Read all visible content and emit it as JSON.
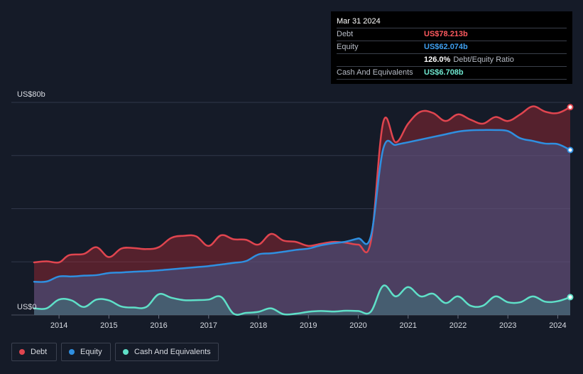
{
  "tooltip": {
    "date": "Mar 31 2024",
    "debt_label": "Debt",
    "debt_value": "US$78.213b",
    "equity_label": "Equity",
    "equity_value": "US$62.074b",
    "ratio_value": "126.0%",
    "ratio_label": "Debt/Equity Ratio",
    "cash_label": "Cash And Equivalents",
    "cash_value": "US$6.708b"
  },
  "colors": {
    "debt": "#e0454f",
    "equity": "#2f8fe0",
    "cash": "#5fe0c8",
    "debt_text": "#ff5a5f",
    "equity_text": "#3fa0f0",
    "cash_text": "#6fe8d0"
  },
  "legend": [
    {
      "name": "Debt",
      "color": "#e0454f"
    },
    {
      "name": "Equity",
      "color": "#2f8fe0"
    },
    {
      "name": "Cash And Equivalents",
      "color": "#5fe0c8"
    }
  ],
  "chart_data": {
    "type": "area",
    "title": "",
    "xlabel": "",
    "ylabel": "",
    "y_unit_labels": {
      "top": "US$80b",
      "bottom": "US$0"
    },
    "ylim": [
      0,
      80
    ],
    "xlim": [
      2013.5,
      2024.25
    ],
    "x_ticks": [
      2014,
      2015,
      2016,
      2017,
      2018,
      2019,
      2020,
      2021,
      2022,
      2023,
      2024
    ],
    "x_tick_labels": [
      "2014",
      "2015",
      "2016",
      "2017",
      "2018",
      "2019",
      "2020",
      "2021",
      "2022",
      "2023",
      "2024"
    ],
    "grid": true,
    "series": [
      {
        "name": "Debt",
        "points": [
          [
            2013.5,
            19.8
          ],
          [
            2013.75,
            20.2
          ],
          [
            2014.0,
            19.8
          ],
          [
            2014.2,
            22.5
          ],
          [
            2014.5,
            23.0
          ],
          [
            2014.75,
            25.5
          ],
          [
            2015.0,
            21.8
          ],
          [
            2015.25,
            25.0
          ],
          [
            2015.5,
            25.2
          ],
          [
            2015.75,
            24.8
          ],
          [
            2016.0,
            25.5
          ],
          [
            2016.25,
            29.0
          ],
          [
            2016.5,
            29.8
          ],
          [
            2016.75,
            29.6
          ],
          [
            2017.0,
            26.0
          ],
          [
            2017.25,
            30.0
          ],
          [
            2017.5,
            28.5
          ],
          [
            2017.75,
            28.3
          ],
          [
            2018.0,
            26.5
          ],
          [
            2018.25,
            30.5
          ],
          [
            2018.5,
            28.0
          ],
          [
            2018.75,
            27.5
          ],
          [
            2019.0,
            26.0
          ],
          [
            2019.25,
            26.8
          ],
          [
            2019.5,
            27.5
          ],
          [
            2019.75,
            27.2
          ],
          [
            2020.0,
            26.5
          ],
          [
            2020.25,
            27.5
          ],
          [
            2020.5,
            72.5
          ],
          [
            2020.75,
            65.0
          ],
          [
            2021.0,
            72.0
          ],
          [
            2021.25,
            76.5
          ],
          [
            2021.5,
            76.0
          ],
          [
            2021.75,
            73.0
          ],
          [
            2022.0,
            75.5
          ],
          [
            2022.25,
            73.5
          ],
          [
            2022.5,
            72.0
          ],
          [
            2022.75,
            74.5
          ],
          [
            2023.0,
            73.0
          ],
          [
            2023.25,
            75.5
          ],
          [
            2023.5,
            78.5
          ],
          [
            2023.75,
            76.5
          ],
          [
            2024.0,
            76.0
          ],
          [
            2024.25,
            78.213
          ]
        ]
      },
      {
        "name": "Equity",
        "points": [
          [
            2013.5,
            12.5
          ],
          [
            2013.75,
            12.6
          ],
          [
            2014.0,
            14.5
          ],
          [
            2014.25,
            14.5
          ],
          [
            2014.5,
            14.8
          ],
          [
            2014.75,
            15.0
          ],
          [
            2015.0,
            15.8
          ],
          [
            2015.25,
            16.0
          ],
          [
            2015.5,
            16.3
          ],
          [
            2015.75,
            16.5
          ],
          [
            2016.0,
            16.8
          ],
          [
            2016.25,
            17.2
          ],
          [
            2016.5,
            17.6
          ],
          [
            2016.75,
            18.0
          ],
          [
            2017.0,
            18.4
          ],
          [
            2017.25,
            19.0
          ],
          [
            2017.5,
            19.6
          ],
          [
            2017.75,
            20.3
          ],
          [
            2018.0,
            22.8
          ],
          [
            2018.25,
            23.2
          ],
          [
            2018.5,
            23.8
          ],
          [
            2018.75,
            24.5
          ],
          [
            2019.0,
            25.0
          ],
          [
            2019.25,
            26.2
          ],
          [
            2019.5,
            27.0
          ],
          [
            2019.75,
            27.6
          ],
          [
            2020.0,
            28.8
          ],
          [
            2020.25,
            29.5
          ],
          [
            2020.5,
            62.5
          ],
          [
            2020.75,
            64.0
          ],
          [
            2021.0,
            65.0
          ],
          [
            2021.25,
            66.0
          ],
          [
            2021.5,
            67.0
          ],
          [
            2021.75,
            68.0
          ],
          [
            2022.0,
            69.0
          ],
          [
            2022.25,
            69.5
          ],
          [
            2022.5,
            69.6
          ],
          [
            2022.75,
            69.6
          ],
          [
            2023.0,
            69.2
          ],
          [
            2023.25,
            66.5
          ],
          [
            2023.5,
            65.5
          ],
          [
            2023.75,
            64.5
          ],
          [
            2024.0,
            64.3
          ],
          [
            2024.25,
            62.074
          ]
        ]
      },
      {
        "name": "Cash And Equivalents",
        "points": [
          [
            2013.5,
            2.5
          ],
          [
            2013.75,
            2.5
          ],
          [
            2014.0,
            5.8
          ],
          [
            2014.25,
            5.5
          ],
          [
            2014.5,
            3.0
          ],
          [
            2014.75,
            5.8
          ],
          [
            2015.0,
            5.5
          ],
          [
            2015.25,
            3.2
          ],
          [
            2015.5,
            2.8
          ],
          [
            2015.75,
            3.0
          ],
          [
            2016.0,
            7.8
          ],
          [
            2016.25,
            6.5
          ],
          [
            2016.5,
            5.6
          ],
          [
            2016.75,
            5.6
          ],
          [
            2017.0,
            5.8
          ],
          [
            2017.25,
            6.8
          ],
          [
            2017.5,
            0.5
          ],
          [
            2017.75,
            0.8
          ],
          [
            2018.0,
            1.2
          ],
          [
            2018.25,
            2.5
          ],
          [
            2018.5,
            0.3
          ],
          [
            2018.75,
            0.5
          ],
          [
            2019.0,
            1.2
          ],
          [
            2019.25,
            1.5
          ],
          [
            2019.5,
            1.3
          ],
          [
            2019.75,
            1.6
          ],
          [
            2020.0,
            1.5
          ],
          [
            2020.25,
            1.2
          ],
          [
            2020.5,
            11.0
          ],
          [
            2020.75,
            7.0
          ],
          [
            2021.0,
            10.5
          ],
          [
            2021.25,
            7.0
          ],
          [
            2021.5,
            8.0
          ],
          [
            2021.75,
            4.5
          ],
          [
            2022.0,
            7.0
          ],
          [
            2022.25,
            3.5
          ],
          [
            2022.5,
            3.5
          ],
          [
            2022.75,
            7.0
          ],
          [
            2023.0,
            4.8
          ],
          [
            2023.25,
            4.8
          ],
          [
            2023.5,
            7.0
          ],
          [
            2023.75,
            5.0
          ],
          [
            2024.0,
            5.2
          ],
          [
            2024.25,
            6.708
          ]
        ]
      }
    ]
  }
}
